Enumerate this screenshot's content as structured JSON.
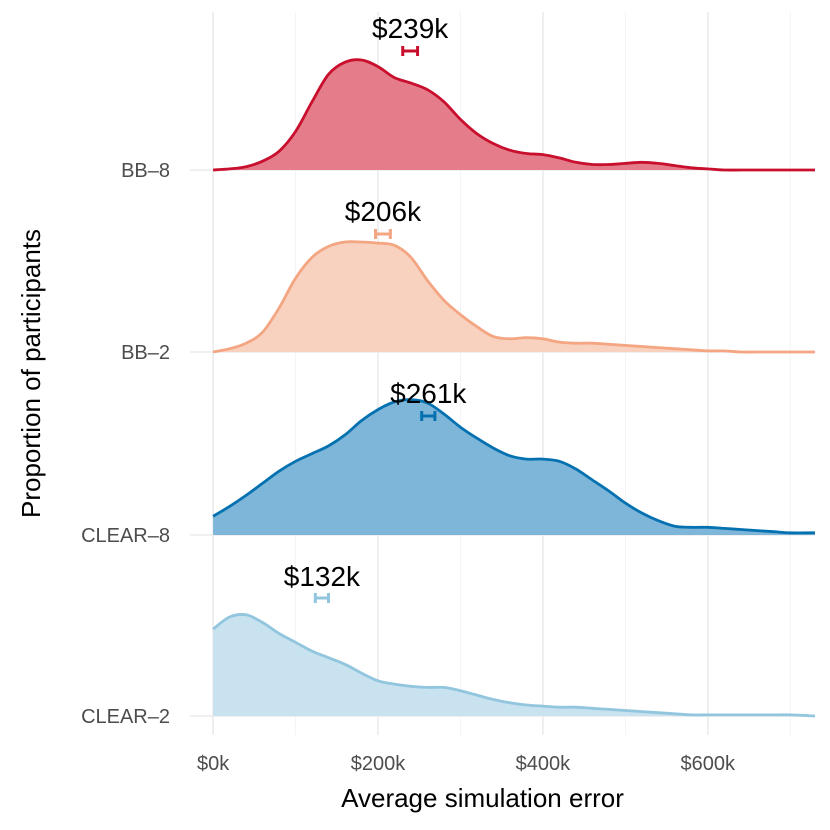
{
  "chart_data": {
    "type": "area",
    "subtype": "ridgeline",
    "xlabel": "Average simulation error",
    "ylabel": "Proportion of participants",
    "xlim": [
      -28,
      730
    ],
    "x_ticks": [
      {
        "value": 0,
        "label": "$0k"
      },
      {
        "value": 200,
        "label": "$200k"
      },
      {
        "value": 400,
        "label": "$400k"
      },
      {
        "value": 600,
        "label": "$600k"
      }
    ],
    "grid": true,
    "series": [
      {
        "name": "BB–8",
        "color": "#c8102e",
        "fill": "#e57c8a",
        "mean": 239,
        "mean_ci": [
          230,
          248
        ],
        "mean_label": "$239k",
        "x": [
          0,
          20,
          40,
          60,
          80,
          100,
          120,
          140,
          160,
          180,
          200,
          220,
          240,
          260,
          280,
          300,
          320,
          340,
          360,
          380,
          400,
          420,
          440,
          460,
          480,
          500,
          520,
          540,
          560,
          580,
          600,
          620,
          640,
          660,
          680,
          700,
          730
        ],
        "density": [
          0.0,
          0.01,
          0.03,
          0.08,
          0.17,
          0.35,
          0.62,
          0.87,
          0.98,
          1.0,
          0.94,
          0.84,
          0.79,
          0.73,
          0.62,
          0.46,
          0.33,
          0.24,
          0.18,
          0.15,
          0.14,
          0.11,
          0.07,
          0.05,
          0.05,
          0.06,
          0.07,
          0.06,
          0.04,
          0.02,
          0.01,
          0.0,
          0.0,
          0.0,
          0.0,
          0.0,
          0.0
        ]
      },
      {
        "name": "BB–2",
        "color": "#f4a582",
        "fill": "#f8d1bf",
        "mean": 206,
        "mean_ci": [
          197,
          215
        ],
        "mean_label": "$206k",
        "x": [
          0,
          20,
          40,
          60,
          80,
          100,
          120,
          140,
          160,
          180,
          200,
          220,
          240,
          260,
          280,
          300,
          320,
          340,
          360,
          380,
          400,
          420,
          440,
          460,
          480,
          500,
          520,
          540,
          560,
          580,
          600,
          620,
          640,
          660,
          680,
          700,
          730
        ],
        "density": [
          0.0,
          0.03,
          0.08,
          0.18,
          0.4,
          0.67,
          0.86,
          0.96,
          1.0,
          1.0,
          0.99,
          0.97,
          0.86,
          0.65,
          0.47,
          0.34,
          0.23,
          0.14,
          0.12,
          0.13,
          0.12,
          0.09,
          0.08,
          0.08,
          0.07,
          0.06,
          0.05,
          0.04,
          0.03,
          0.02,
          0.01,
          0.01,
          0.0,
          0.0,
          0.0,
          0.0,
          0.0
        ]
      },
      {
        "name": "CLEAR–8",
        "color": "#0571b0",
        "fill": "#7db6d8",
        "mean": 261,
        "mean_ci": [
          253,
          269
        ],
        "mean_label": "$261k",
        "x": [
          0,
          20,
          40,
          60,
          80,
          100,
          120,
          140,
          160,
          180,
          200,
          220,
          240,
          260,
          280,
          300,
          320,
          340,
          360,
          380,
          400,
          420,
          440,
          460,
          480,
          500,
          520,
          540,
          560,
          580,
          600,
          620,
          640,
          660,
          680,
          700,
          730
        ],
        "density": [
          0.17,
          0.26,
          0.36,
          0.47,
          0.58,
          0.67,
          0.74,
          0.81,
          0.91,
          1.04,
          1.14,
          1.21,
          1.23,
          1.2,
          1.1,
          0.98,
          0.88,
          0.79,
          0.72,
          0.69,
          0.69,
          0.67,
          0.6,
          0.5,
          0.4,
          0.29,
          0.2,
          0.13,
          0.08,
          0.07,
          0.07,
          0.06,
          0.05,
          0.04,
          0.03,
          0.02,
          0.02
        ]
      },
      {
        "name": "CLEAR–2",
        "color": "#92c5de",
        "fill": "#c8e2ef",
        "mean": 132,
        "mean_ci": [
          124,
          140
        ],
        "mean_label": "$132k",
        "x": [
          0,
          20,
          40,
          60,
          80,
          100,
          120,
          140,
          160,
          180,
          200,
          220,
          240,
          260,
          280,
          300,
          320,
          340,
          360,
          380,
          400,
          420,
          440,
          460,
          480,
          500,
          520,
          540,
          560,
          580,
          600,
          620,
          640,
          660,
          680,
          700,
          730
        ],
        "density": [
          0.79,
          0.9,
          0.92,
          0.85,
          0.75,
          0.67,
          0.59,
          0.53,
          0.47,
          0.39,
          0.32,
          0.29,
          0.27,
          0.26,
          0.26,
          0.23,
          0.19,
          0.15,
          0.12,
          0.1,
          0.09,
          0.08,
          0.08,
          0.07,
          0.06,
          0.05,
          0.04,
          0.03,
          0.02,
          0.01,
          0.01,
          0.01,
          0.01,
          0.01,
          0.01,
          0.01,
          0.0
        ]
      }
    ]
  }
}
